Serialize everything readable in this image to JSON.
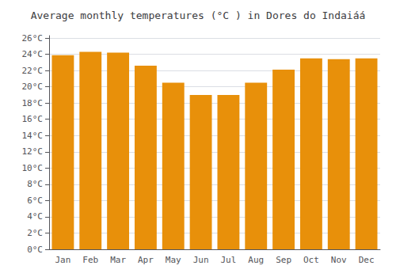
{
  "chart_data": {
    "type": "bar",
    "title": "Average monthly temperatures (°C ) in Dores do Indaiáá",
    "categories": [
      "Jan",
      "Feb",
      "Mar",
      "Apr",
      "May",
      "Jun",
      "Jul",
      "Aug",
      "Sep",
      "Oct",
      "Nov",
      "Dec"
    ],
    "values": [
      23.9,
      24.3,
      24.2,
      22.6,
      20.5,
      19.0,
      19.0,
      20.5,
      22.1,
      23.5,
      23.4,
      23.5
    ],
    "color": "#E8900A",
    "ylim": [
      0,
      26.3
    ],
    "yticks": [
      {
        "value": 0,
        "label": "0°C"
      },
      {
        "value": 2,
        "label": "2°C"
      },
      {
        "value": 4,
        "label": "4°C"
      },
      {
        "value": 6,
        "label": "6°C"
      },
      {
        "value": 8,
        "label": "8°C"
      },
      {
        "value": 10,
        "label": "10°C"
      },
      {
        "value": 12,
        "label": "12°C"
      },
      {
        "value": 14,
        "label": "14°C"
      },
      {
        "value": 16,
        "label": "16°C"
      },
      {
        "value": 18,
        "label": "18°C"
      },
      {
        "value": 20,
        "label": "20°C"
      },
      {
        "value": 22,
        "label": "22°C"
      },
      {
        "value": 24,
        "label": "24°C"
      },
      {
        "value": 26,
        "label": "26°C"
      }
    ],
    "grid": true
  }
}
